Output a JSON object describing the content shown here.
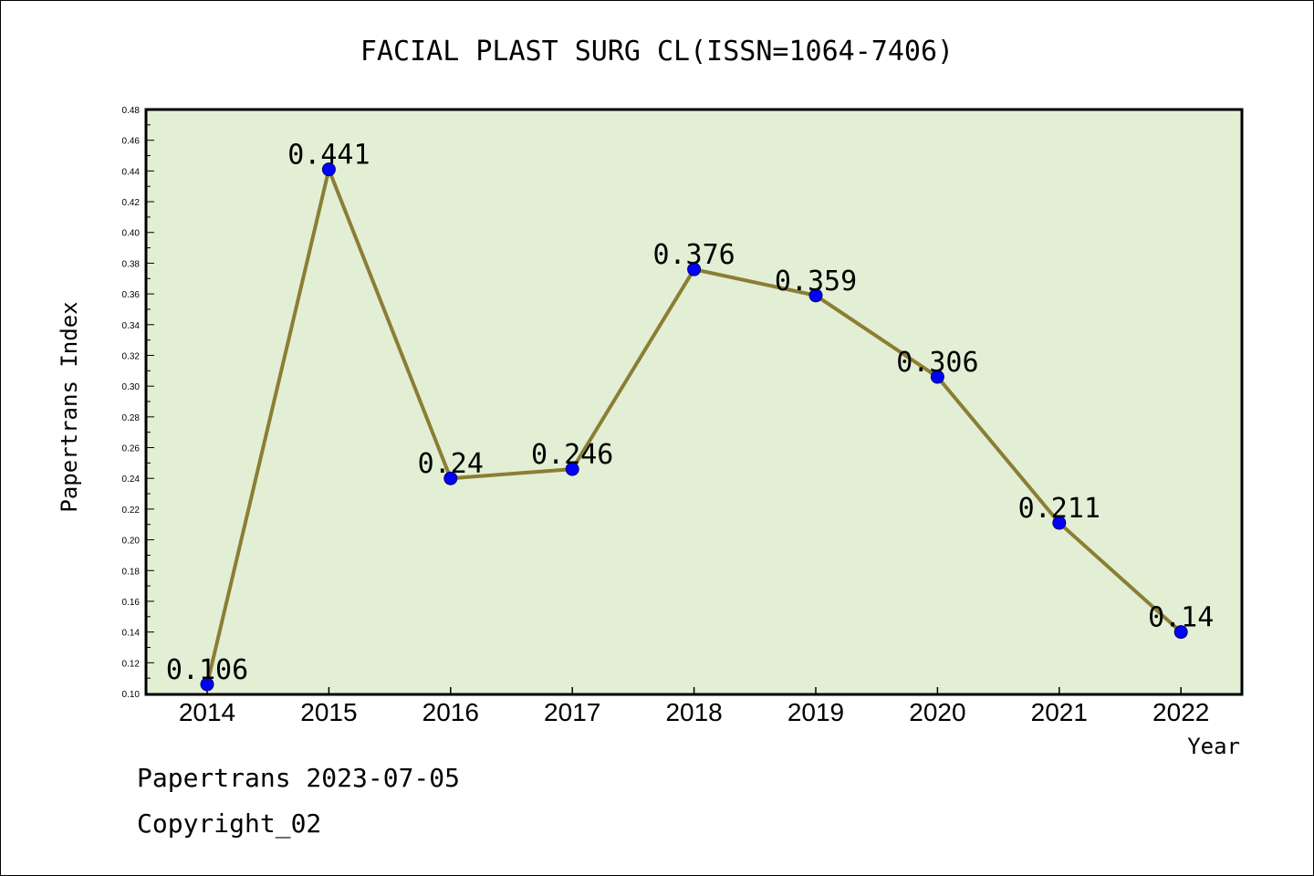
{
  "chart_data": {
    "type": "line",
    "title": "FACIAL PLAST SURG CL(ISSN=1064-7406)",
    "xlabel": "Year",
    "ylabel": "Papertrans Index",
    "categories": [
      "2014",
      "2015",
      "2016",
      "2017",
      "2018",
      "2019",
      "2020",
      "2021",
      "2022"
    ],
    "series": [
      {
        "values": [
          0.106,
          0.441,
          0.24,
          0.246,
          0.376,
          0.359,
          0.306,
          0.211,
          0.14
        ],
        "data_labels": [
          "0.106",
          "0.441",
          "0.24",
          "0.246",
          "0.376",
          "0.359",
          "0.306",
          "0.211",
          "0.14"
        ]
      }
    ],
    "ylim": [
      0.1,
      0.48
    ],
    "y_ticks": [
      "0.10",
      "0.12",
      "0.14",
      "0.16",
      "0.18",
      "0.20",
      "0.22",
      "0.24",
      "0.26",
      "0.28",
      "0.30",
      "0.32",
      "0.34",
      "0.36",
      "0.38",
      "0.40",
      "0.42",
      "0.44",
      "0.46",
      "0.48"
    ],
    "y_tick_values": [
      0.1,
      0.12,
      0.14,
      0.16,
      0.18,
      0.2,
      0.22,
      0.24,
      0.26,
      0.28,
      0.3,
      0.32,
      0.34,
      0.36,
      0.38,
      0.4,
      0.42,
      0.44,
      0.46,
      0.48
    ],
    "grid": false,
    "legend": "none",
    "colors": {
      "plot_background": "#e2efd5",
      "line": "#8b7e34",
      "marker_fill": "#0000ff",
      "marker_edge": "#000066",
      "axis": "#000000"
    }
  },
  "footer": {
    "line1": "Papertrans 2023-07-05",
    "line2": "Copyright_02"
  }
}
